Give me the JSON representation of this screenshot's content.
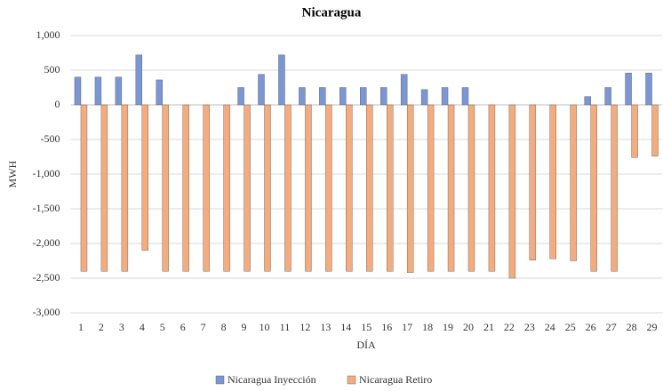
{
  "chart_data": {
    "type": "bar",
    "title": "Nicaragua",
    "x_label": "DÍA",
    "y_label": "MWH",
    "categories": [
      1,
      2,
      3,
      4,
      5,
      6,
      7,
      8,
      9,
      10,
      11,
      12,
      13,
      14,
      15,
      16,
      17,
      18,
      19,
      20,
      21,
      22,
      23,
      24,
      25,
      26,
      27,
      28,
      29
    ],
    "series": [
      {
        "name": "Nicaragua Inyección",
        "color": "#7b96d4",
        "values": [
          400,
          400,
          400,
          720,
          360,
          0,
          0,
          0,
          250,
          440,
          720,
          250,
          250,
          250,
          250,
          250,
          440,
          220,
          250,
          250,
          0,
          0,
          0,
          0,
          0,
          120,
          250,
          460,
          460
        ]
      },
      {
        "name": "Nicaragua Retiro",
        "color": "#f4ac7e",
        "values": [
          -2400,
          -2400,
          -2400,
          -2100,
          -2400,
          -2400,
          -2400,
          -2400,
          -2400,
          -2400,
          -2400,
          -2400,
          -2400,
          -2400,
          -2400,
          -2400,
          -2420,
          -2400,
          -2400,
          -2400,
          -2400,
          -2500,
          -2240,
          -2220,
          -2250,
          -2400,
          -2400,
          -760,
          -740
        ]
      }
    ],
    "ylim": [
      -3000,
      1000
    ],
    "yticks": [
      {
        "value": 1000,
        "label": "1,000"
      },
      500,
      0,
      -500,
      {
        "value": -1000,
        "label": "-1,000"
      },
      {
        "value": -1500,
        "label": "-1,500"
      },
      {
        "value": -2000,
        "label": "-2,000"
      },
      {
        "value": -2500,
        "label": "-2,500"
      },
      {
        "value": -3000,
        "label": "-3,000"
      }
    ],
    "grid": true,
    "legend": "bottom"
  }
}
